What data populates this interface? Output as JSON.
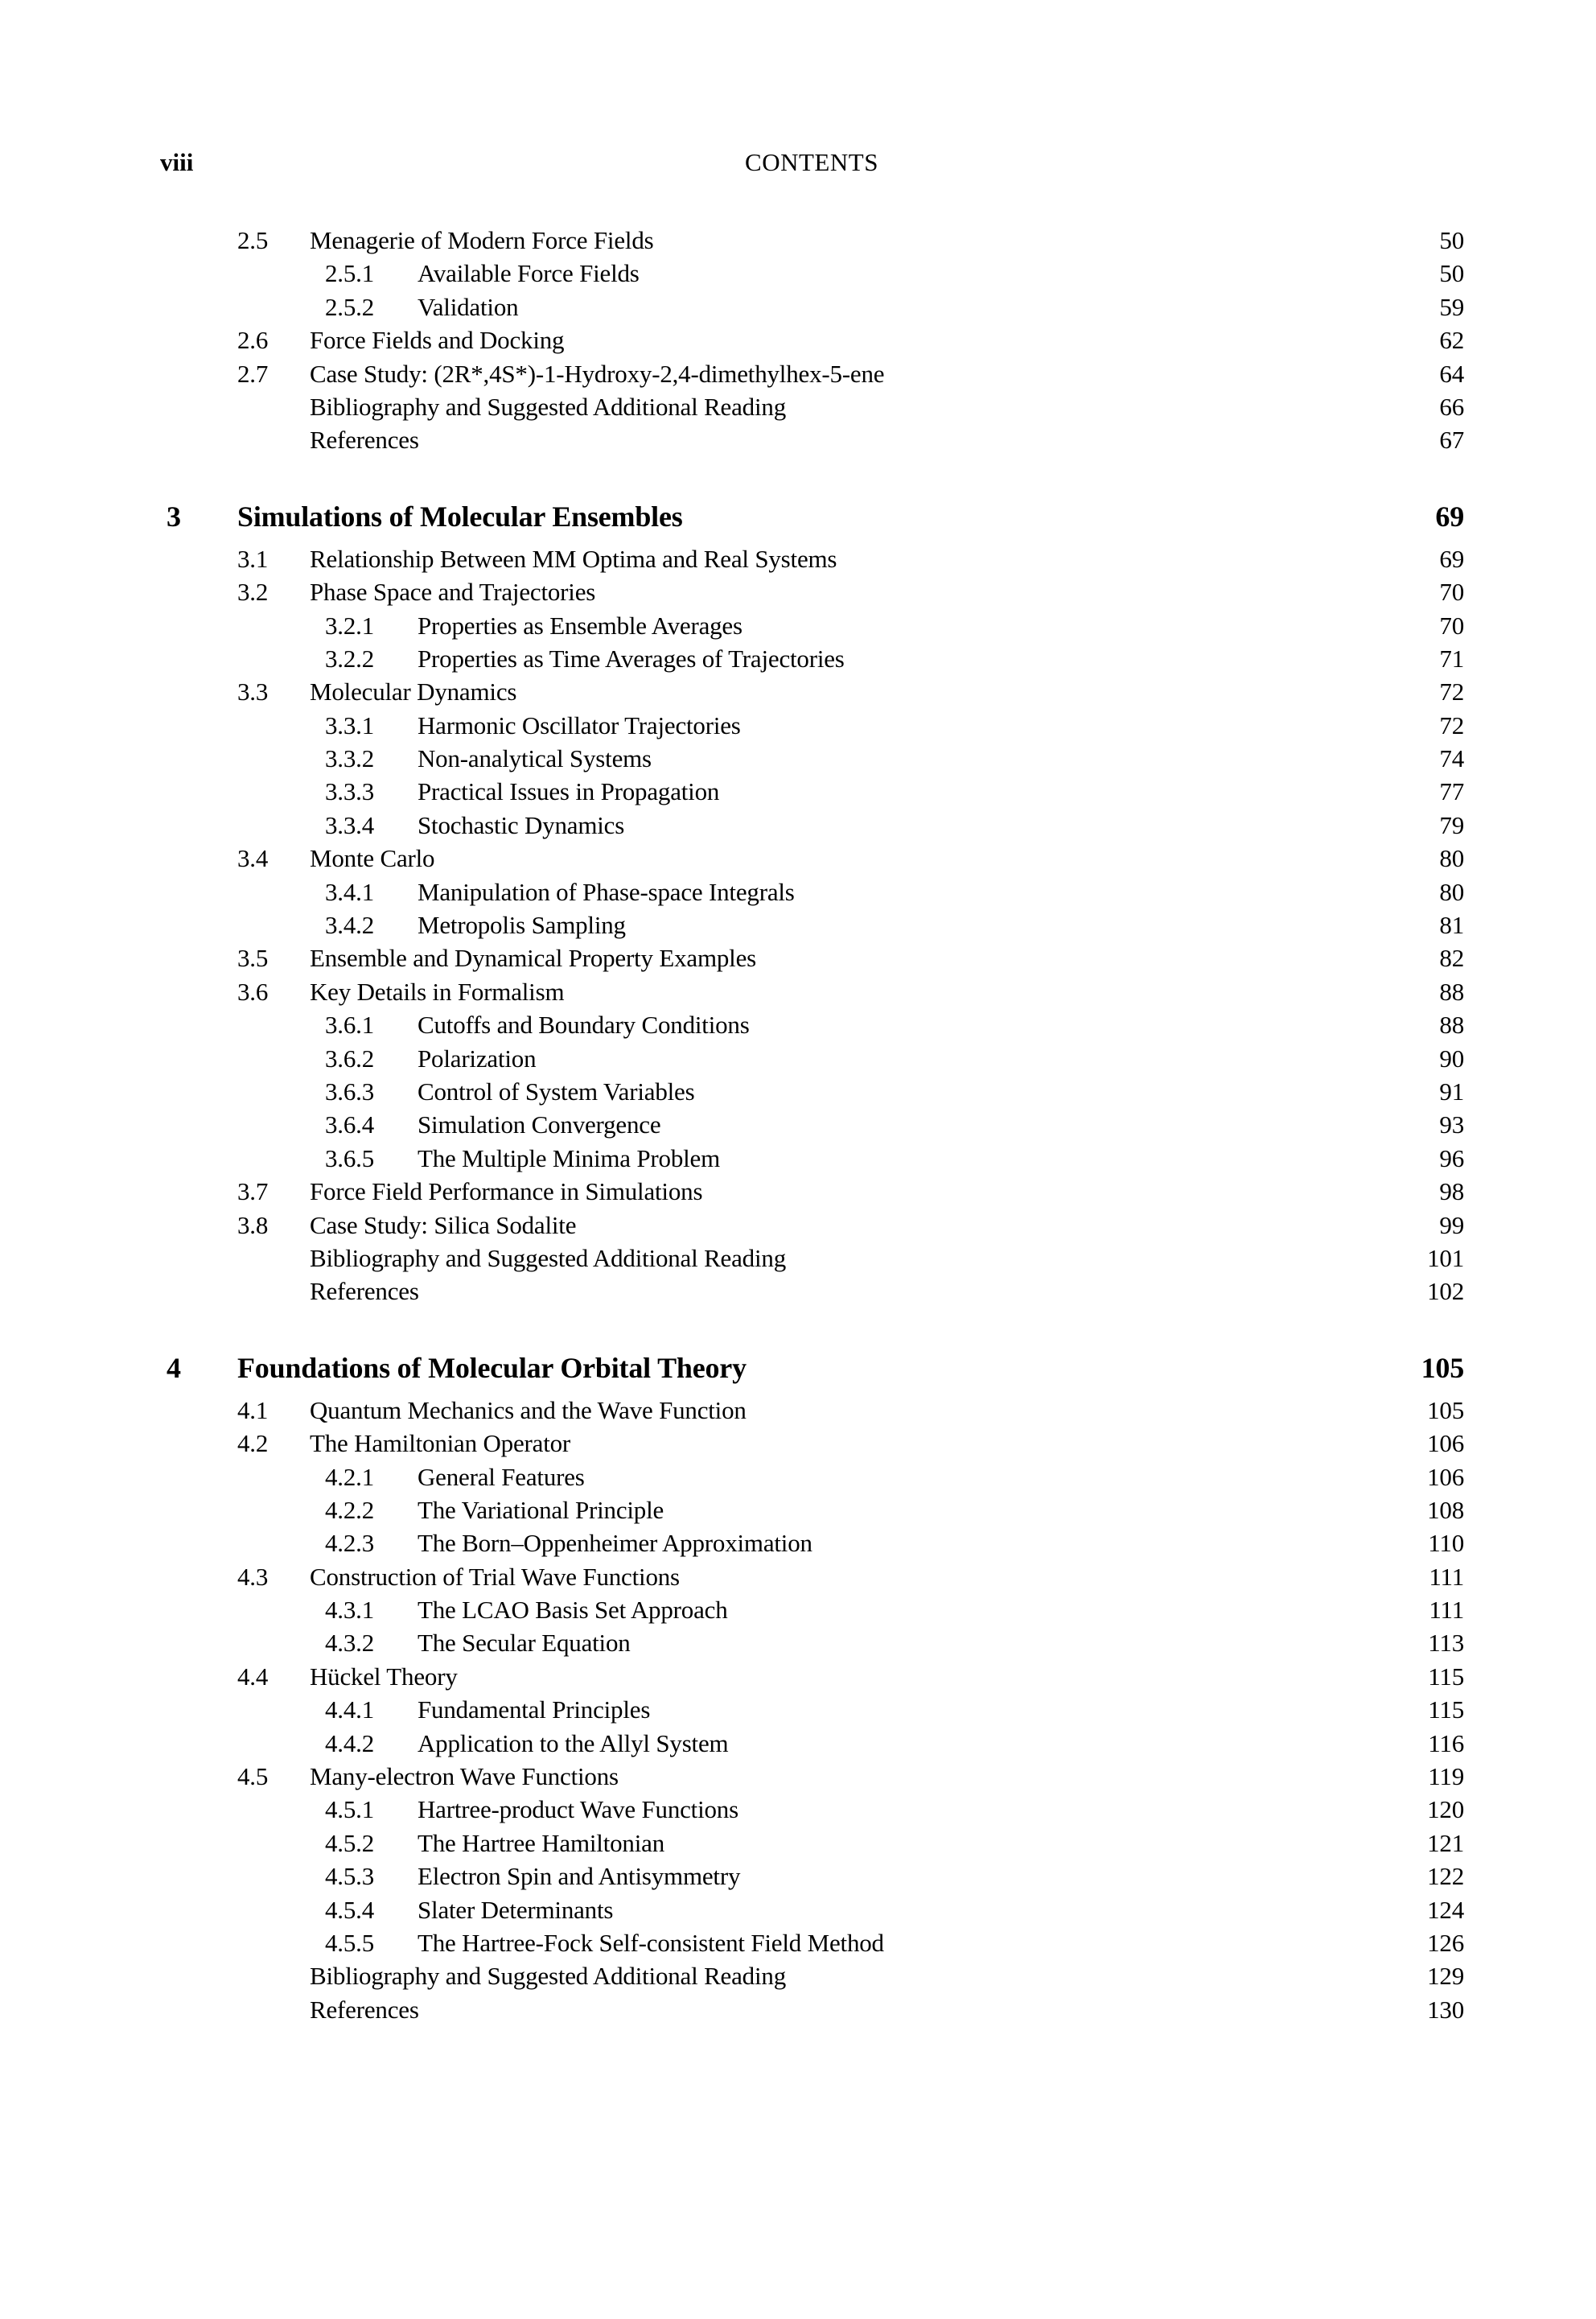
{
  "page": {
    "page_label": "viii",
    "header_title": "CONTENTS",
    "background_color": "#ffffff",
    "text_color": "#000000"
  },
  "toc": {
    "sections": [
      {
        "rows": [
          {
            "level": "section",
            "number": "2.5",
            "title": "Menagerie of Modern Force Fields",
            "page": "50"
          },
          {
            "level": "subsection",
            "number": "2.5.1",
            "title": "Available Force Fields",
            "page": "50"
          },
          {
            "level": "subsection",
            "number": "2.5.2",
            "title": "Validation",
            "page": "59"
          },
          {
            "level": "section",
            "number": "2.6",
            "title": "Force Fields and Docking",
            "page": "62"
          },
          {
            "level": "section",
            "number": "2.7",
            "title": "Case Study: (2R*,4S*)-1-Hydroxy-2,4-dimethylhex-5-ene",
            "page": "64"
          },
          {
            "level": "plain",
            "number": "",
            "title": "Bibliography and Suggested Additional Reading",
            "page": "66"
          },
          {
            "level": "plain",
            "number": "",
            "title": "References",
            "page": "67"
          }
        ]
      },
      {
        "number": "3",
        "title": "Simulations of Molecular Ensembles",
        "page": "69",
        "rows": [
          {
            "level": "section",
            "number": "3.1",
            "title": "Relationship Between MM Optima and Real Systems",
            "page": "69"
          },
          {
            "level": "section",
            "number": "3.2",
            "title": "Phase Space and Trajectories",
            "page": "70"
          },
          {
            "level": "subsection",
            "number": "3.2.1",
            "title": "Properties as Ensemble Averages",
            "page": "70"
          },
          {
            "level": "subsection",
            "number": "3.2.2",
            "title": "Properties as Time Averages of Trajectories",
            "page": "71"
          },
          {
            "level": "section",
            "number": "3.3",
            "title": "Molecular Dynamics",
            "page": "72"
          },
          {
            "level": "subsection",
            "number": "3.3.1",
            "title": "Harmonic Oscillator Trajectories",
            "page": "72"
          },
          {
            "level": "subsection",
            "number": "3.3.2",
            "title": "Non-analytical Systems",
            "page": "74"
          },
          {
            "level": "subsection",
            "number": "3.3.3",
            "title": "Practical Issues in Propagation",
            "page": "77"
          },
          {
            "level": "subsection",
            "number": "3.3.4",
            "title": "Stochastic Dynamics",
            "page": "79"
          },
          {
            "level": "section",
            "number": "3.4",
            "title": "Monte Carlo",
            "page": "80"
          },
          {
            "level": "subsection",
            "number": "3.4.1",
            "title": "Manipulation of Phase-space Integrals",
            "page": "80"
          },
          {
            "level": "subsection",
            "number": "3.4.2",
            "title": "Metropolis Sampling",
            "page": "81"
          },
          {
            "level": "section",
            "number": "3.5",
            "title": "Ensemble and Dynamical Property Examples",
            "page": "82"
          },
          {
            "level": "section",
            "number": "3.6",
            "title": "Key Details in Formalism",
            "page": "88"
          },
          {
            "level": "subsection",
            "number": "3.6.1",
            "title": "Cutoffs and Boundary Conditions",
            "page": "88"
          },
          {
            "level": "subsection",
            "number": "3.6.2",
            "title": "Polarization",
            "page": "90"
          },
          {
            "level": "subsection",
            "number": "3.6.3",
            "title": "Control of System Variables",
            "page": "91"
          },
          {
            "level": "subsection",
            "number": "3.6.4",
            "title": "Simulation Convergence",
            "page": "93"
          },
          {
            "level": "subsection",
            "number": "3.6.5",
            "title": "The Multiple Minima Problem",
            "page": "96"
          },
          {
            "level": "section",
            "number": "3.7",
            "title": "Force Field Performance in Simulations",
            "page": "98"
          },
          {
            "level": "section",
            "number": "3.8",
            "title": "Case Study: Silica Sodalite",
            "page": "99"
          },
          {
            "level": "plain",
            "number": "",
            "title": "Bibliography and Suggested Additional Reading",
            "page": "101"
          },
          {
            "level": "plain",
            "number": "",
            "title": "References",
            "page": "102"
          }
        ]
      },
      {
        "number": "4",
        "title": "Foundations of Molecular Orbital Theory",
        "page": "105",
        "rows": [
          {
            "level": "section",
            "number": "4.1",
            "title": "Quantum Mechanics and the Wave Function",
            "page": "105"
          },
          {
            "level": "section",
            "number": "4.2",
            "title": "The Hamiltonian Operator",
            "page": "106"
          },
          {
            "level": "subsection",
            "number": "4.2.1",
            "title": "General Features",
            "page": "106"
          },
          {
            "level": "subsection",
            "number": "4.2.2",
            "title": "The Variational Principle",
            "page": "108"
          },
          {
            "level": "subsection",
            "number": "4.2.3",
            "title": "The Born–Oppenheimer Approximation",
            "page": "110"
          },
          {
            "level": "section",
            "number": "4.3",
            "title": "Construction of Trial Wave Functions",
            "page": "111"
          },
          {
            "level": "subsection",
            "number": "4.3.1",
            "title": "The LCAO Basis Set Approach",
            "page": "111"
          },
          {
            "level": "subsection",
            "number": "4.3.2",
            "title": "The Secular Equation",
            "page": "113"
          },
          {
            "level": "section",
            "number": "4.4",
            "title": "Hückel Theory",
            "page": "115"
          },
          {
            "level": "subsection",
            "number": "4.4.1",
            "title": "Fundamental Principles",
            "page": "115"
          },
          {
            "level": "subsection",
            "number": "4.4.2",
            "title": "Application to the Allyl System",
            "page": "116"
          },
          {
            "level": "section",
            "number": "4.5",
            "title": "Many-electron Wave Functions",
            "page": "119"
          },
          {
            "level": "subsection",
            "number": "4.5.1",
            "title": "Hartree-product Wave Functions",
            "page": "120"
          },
          {
            "level": "subsection",
            "number": "4.5.2",
            "title": "The Hartree Hamiltonian",
            "page": "121"
          },
          {
            "level": "subsection",
            "number": "4.5.3",
            "title": "Electron Spin and Antisymmetry",
            "page": "122"
          },
          {
            "level": "subsection",
            "number": "4.5.4",
            "title": "Slater Determinants",
            "page": "124"
          },
          {
            "level": "subsection",
            "number": "4.5.5",
            "title": "The Hartree-Fock Self-consistent Field Method",
            "page": "126"
          },
          {
            "level": "plain",
            "number": "",
            "title": "Bibliography and Suggested Additional Reading",
            "page": "129"
          },
          {
            "level": "plain",
            "number": "",
            "title": "References",
            "page": "130"
          }
        ]
      }
    ]
  }
}
